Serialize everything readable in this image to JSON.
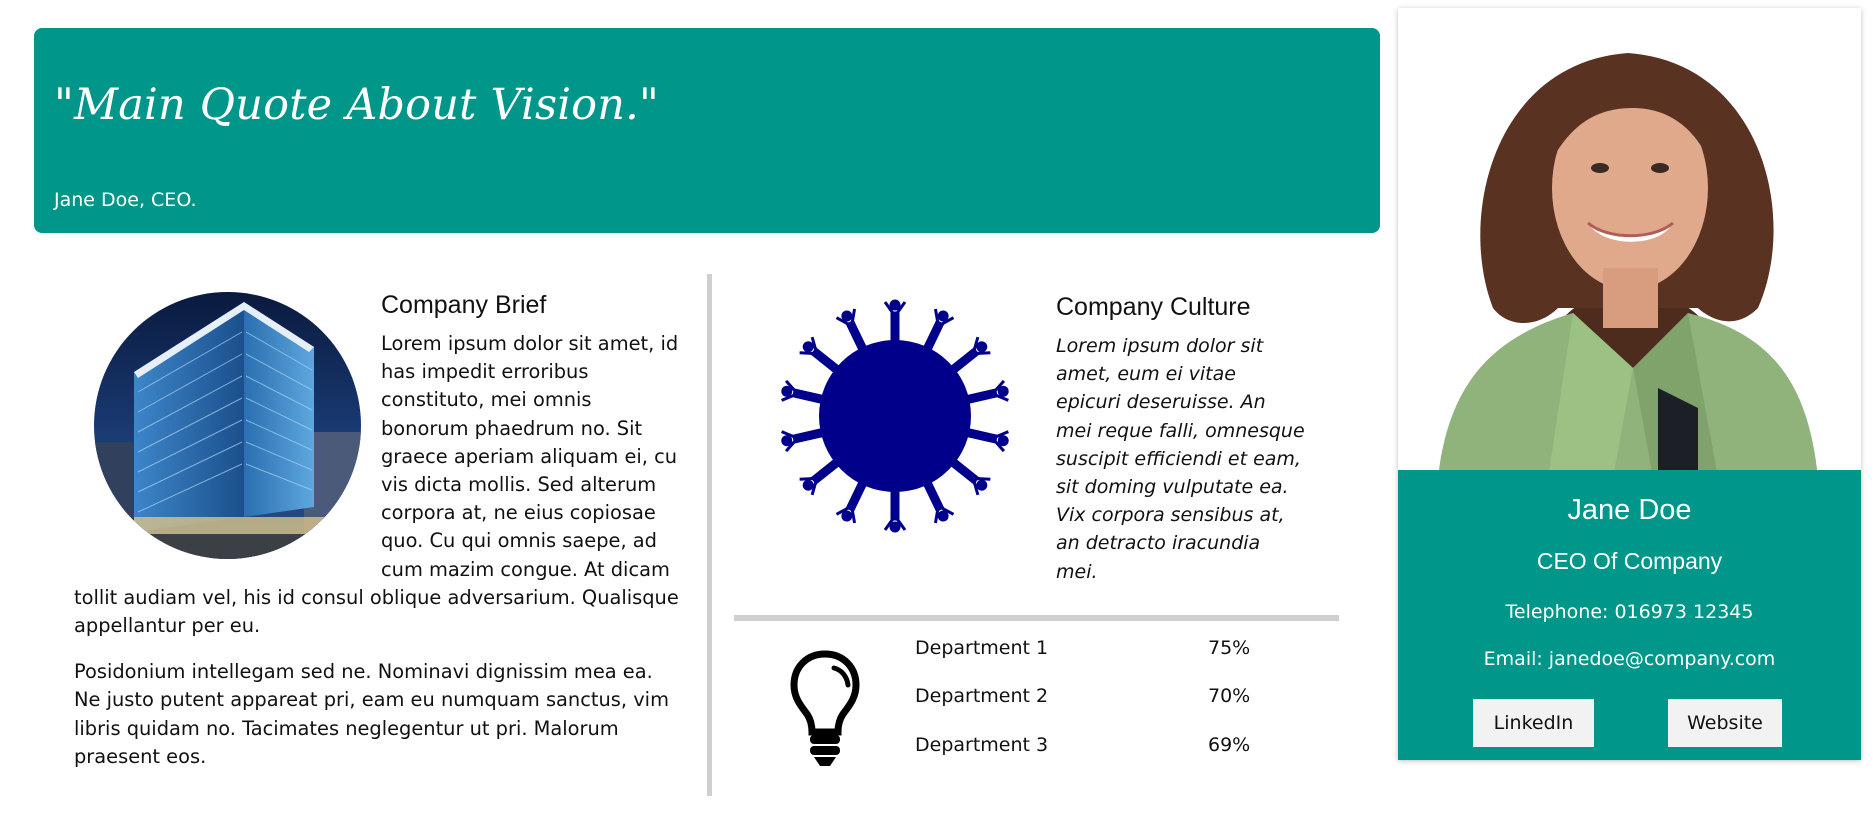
{
  "quote": {
    "text": "\"Main Quote About Vision.\"",
    "attribution": "Jane Doe, CEO."
  },
  "brief": {
    "title": "Company Brief",
    "para1": "Lorem ipsum dolor sit amet, id has impedit erroribus constituto, mei omnis bonorum phaedrum no. Sit graece aperiam aliquam ei, cu vis dicta mollis. Sed alterum corpora at, ne eius copiosae quo. Cu qui omnis saepe, ad cum mazim congue. At dicam tollit audiam vel, his id consul oblique adversarium. Qualisque appellantur per eu.",
    "para2": "Posidonium intellegam sed ne. Nominavi dignissim mea ea. Ne justo putent appareat pri, eam eu numquam sanctus, vim libris quidam no. Tacimates neglegentur ut pri. Malorum praesent eos."
  },
  "culture": {
    "title": "Company Culture",
    "text": "Lorem ipsum dolor sit amet, eum ei vitae epicuri deseruisse. An mei reque falli, omnesque suscipit efficiendi et eam, sit doming vulputate ea. Vix corpora sensibus at, an detracto iracundia mei."
  },
  "departments": [
    {
      "name": "Department 1",
      "percent": "75%"
    },
    {
      "name": "Department 2",
      "percent": "70%"
    },
    {
      "name": "Department 3",
      "percent": "69%"
    }
  ],
  "profile": {
    "name": "Jane Doe",
    "title": "CEO Of Company",
    "phone": "Telephone: 016973 12345",
    "email": "Email: janedoe@company.com",
    "linkedin_label": "LinkedIn",
    "website_label": "Website"
  },
  "colors": {
    "accent": "#00968a",
    "culture_icon": "#00008b",
    "divider": "#cfcfcf"
  },
  "icons": {
    "culture": "people-circle-icon",
    "departments": "lightbulb-icon"
  }
}
